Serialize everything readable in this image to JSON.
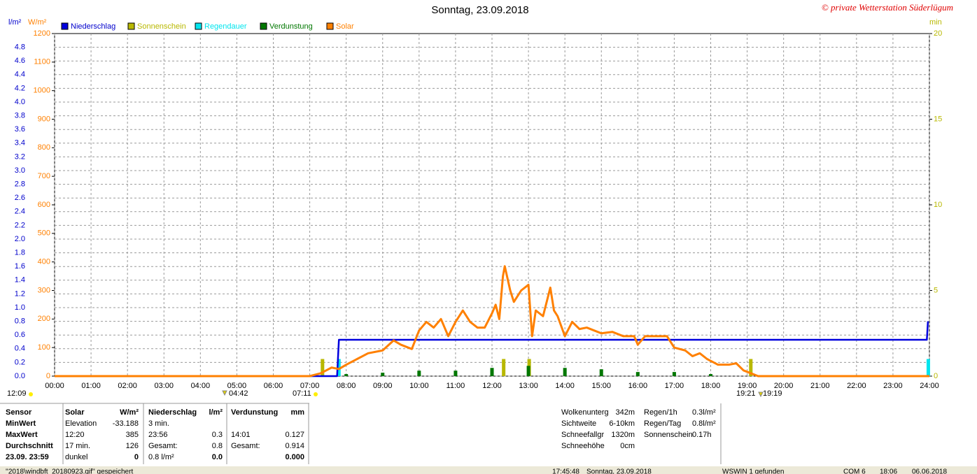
{
  "chart_data": {
    "type": "line",
    "title": "Sonntag, 23.09.2018",
    "watermark": "© private Wetterstation Süderlügum",
    "ylabel": "W/m²",
    "y2label": "l/m²",
    "y3label": "min",
    "xlim": [
      0,
      24
    ],
    "xticks": [
      {
        "value": 0,
        "label": "00:00"
      },
      {
        "value": 1,
        "label": "01:00"
      },
      {
        "value": 2,
        "label": "02:00"
      },
      {
        "value": 3,
        "label": "03:00"
      },
      {
        "value": 4,
        "label": "04:00"
      },
      {
        "value": 5,
        "label": "05:00"
      },
      {
        "value": 6,
        "label": "06:00"
      },
      {
        "value": 7,
        "label": "07:00"
      },
      {
        "value": 8,
        "label": "08:00"
      },
      {
        "value": 9,
        "label": "09:00"
      },
      {
        "value": 10,
        "label": "10:00"
      },
      {
        "value": 11,
        "label": "11:00"
      },
      {
        "value": 12,
        "label": "12:00"
      },
      {
        "value": 13,
        "label": "13:00"
      },
      {
        "value": 14,
        "label": "14:00"
      },
      {
        "value": 15,
        "label": "15:00"
      },
      {
        "value": 16,
        "label": "16:00"
      },
      {
        "value": 17,
        "label": "17:00"
      },
      {
        "value": 18,
        "label": "18:00"
      },
      {
        "value": 19,
        "label": "19:00"
      },
      {
        "value": 20,
        "label": "20:00"
      },
      {
        "value": 21,
        "label": "21:00"
      },
      {
        "value": 22,
        "label": "22:00"
      },
      {
        "value": 23,
        "label": "23:00"
      },
      {
        "value": 24,
        "label": "24:00"
      }
    ],
    "ylim": [
      0,
      1200
    ],
    "yticks": [
      0,
      100,
      200,
      300,
      400,
      500,
      600,
      700,
      800,
      900,
      1000,
      1100,
      1200
    ],
    "y2lim": [
      0,
      5
    ],
    "y2ticks": [
      {
        "value": 0,
        "label": "0.0"
      },
      0.2,
      0.4,
      0.6,
      0.8,
      {
        "value": 1,
        "label": "1.0"
      },
      1.2,
      1.4,
      1.6,
      1.8,
      {
        "value": 2,
        "label": "2.0"
      },
      2.2,
      2.4,
      2.6,
      2.8,
      {
        "value": 3,
        "label": "3.0"
      },
      3.2,
      3.4,
      3.6,
      3.8,
      {
        "value": 4,
        "label": "4.0"
      },
      4.2,
      4.4,
      4.6,
      4.8
    ],
    "y3lim": [
      0,
      20
    ],
    "y3ticks": [
      0,
      5,
      10,
      15,
      20
    ],
    "grid": true,
    "series": [
      {
        "name": "Niederschlag",
        "type": "line",
        "axis": "y2",
        "color": "#0000dd",
        "x": [
          0,
          7.75,
          7.8,
          23.93,
          23.96
        ],
        "values": [
          0,
          0,
          0.53,
          0.53,
          0.8
        ]
      },
      {
        "name": "Sonnenschein",
        "type": "bar",
        "axis": "y3",
        "color": "#b8b800",
        "x": [
          7.35,
          12.32,
          13.02,
          19.1
        ],
        "values": [
          1,
          1,
          1,
          1
        ]
      },
      {
        "name": "Regendauer",
        "type": "bar",
        "axis": "y3",
        "color": "#00e5ee",
        "x": [
          7.8,
          23.97
        ],
        "values": [
          1,
          1
        ]
      },
      {
        "name": "Verdunstung",
        "type": "bar",
        "axis": "y2",
        "color": "#007700",
        "x": [
          8,
          9,
          10,
          11,
          12,
          13,
          14,
          15,
          16,
          17,
          18
        ],
        "values": [
          0.03,
          0.05,
          0.08,
          0.08,
          0.12,
          0.15,
          0.12,
          0.1,
          0.06,
          0.06,
          0.03
        ]
      },
      {
        "name": "Solar",
        "type": "line",
        "axis": "y",
        "color": "#ff8000",
        "x": [
          0,
          7.0,
          7.3,
          7.6,
          7.8,
          8.0,
          8.3,
          8.6,
          9.0,
          9.3,
          9.5,
          9.8,
          10.0,
          10.2,
          10.4,
          10.6,
          10.8,
          11.0,
          11.2,
          11.4,
          11.6,
          11.8,
          12.0,
          12.1,
          12.2,
          12.3,
          12.35,
          12.5,
          12.6,
          12.8,
          13.0,
          13.1,
          13.2,
          13.4,
          13.5,
          13.6,
          13.7,
          13.8,
          14.0,
          14.2,
          14.4,
          14.6,
          14.8,
          15.0,
          15.3,
          15.6,
          15.9,
          16.0,
          16.2,
          16.5,
          16.8,
          17.0,
          17.3,
          17.5,
          17.7,
          17.9,
          18.2,
          18.5,
          18.7,
          18.9,
          19.2,
          19.3,
          24
        ],
        "values": [
          0,
          0,
          10,
          30,
          25,
          40,
          60,
          80,
          90,
          125,
          110,
          95,
          160,
          190,
          170,
          200,
          140,
          190,
          230,
          190,
          170,
          170,
          220,
          250,
          200,
          350,
          385,
          300,
          260,
          300,
          320,
          140,
          230,
          210,
          260,
          310,
          230,
          210,
          140,
          190,
          165,
          170,
          160,
          150,
          155,
          140,
          140,
          110,
          140,
          140,
          140,
          100,
          90,
          70,
          80,
          60,
          40,
          40,
          45,
          20,
          5,
          0,
          0
        ]
      }
    ],
    "annotations": [
      "12:09",
      "04:42",
      "07:11",
      "19:21",
      "19:19"
    ]
  },
  "info_table": {
    "rows": [
      [
        "Sensor",
        "Solar",
        "W/m²",
        "Niederschlag",
        "l/m²",
        "Verdunstung",
        "mm"
      ],
      [
        "MinWert",
        "Elevation",
        "-33.188",
        "3 min.",
        null,
        null,
        null
      ],
      [
        "MaxWert",
        "12:20",
        "385",
        "23:56",
        "0.3",
        "14:01",
        "0.127"
      ],
      [
        "Durchschnitt",
        "17 min.",
        "126",
        "Gesamt:",
        "0.8",
        "Gesamt:",
        "0.914"
      ],
      [
        "23.09. 23:59",
        "dunkel",
        "0",
        "0.8 l/m²",
        "0.0",
        null,
        "0.000"
      ]
    ]
  },
  "weather": [
    [
      "Wolkenunterg",
      "342m"
    ],
    [
      "Sichtweite",
      "6-10km"
    ],
    [
      "Schneefallgr",
      "1320m"
    ],
    [
      "Schneehöhe",
      "0cm"
    ]
  ],
  "rain": [
    [
      "Regen/1h",
      "0.3l/m²"
    ],
    [
      "Regen/Tag",
      "0.8l/m²"
    ],
    [
      "Sonnenschein",
      "0.17h"
    ]
  ],
  "status_bar": [
    "''2018\\windbft_20180923.gif'' gespeichert",
    "17:45:48",
    "Sonntag, 23.09.2018",
    "WSWIN 1 gefunden",
    "COM 6",
    "18:06",
    "06.06.2018"
  ]
}
